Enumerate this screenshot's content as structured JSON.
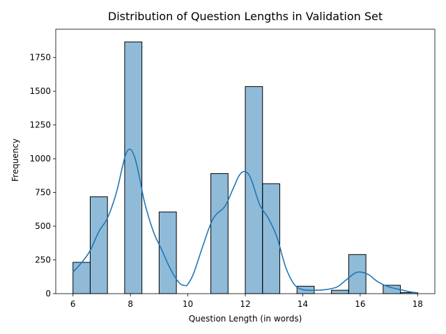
{
  "chart_data": {
    "type": "bar",
    "title": "Distribution of Question Lengths in Validation Set",
    "xlabel": "Question Length (in words)",
    "ylabel": "Frequency",
    "xlim": [
      5.4,
      18.6
    ],
    "ylim": [
      0,
      1960
    ],
    "xticks": [
      6,
      8,
      10,
      12,
      14,
      16,
      18
    ],
    "yticks": [
      0,
      250,
      500,
      750,
      1000,
      1250,
      1500,
      1750
    ],
    "grid": false,
    "legend": "none",
    "bar_color": "#1f77b4",
    "bin_edges": [
      6.0,
      6.6,
      7.2,
      7.8,
      8.4,
      9.0,
      9.6,
      10.2,
      10.8,
      11.4,
      12.0,
      12.6,
      13.2,
      13.8,
      14.4,
      15.0,
      15.6,
      16.2,
      16.8,
      17.4,
      18.0
    ],
    "values": [
      232,
      718,
      0,
      1866,
      0,
      605,
      0,
      0,
      890,
      0,
      1535,
      815,
      0,
      55,
      0,
      25,
      290,
      0,
      62,
      8
    ],
    "kde": {
      "x": [
        6.0,
        6.3,
        6.6,
        6.9,
        7.2,
        7.5,
        7.7,
        7.85,
        8.0,
        8.15,
        8.3,
        8.5,
        8.8,
        9.1,
        9.4,
        9.7,
        9.9,
        10.0,
        10.2,
        10.5,
        10.8,
        11.0,
        11.3,
        11.6,
        11.8,
        12.0,
        12.2,
        12.5,
        12.8,
        13.1,
        13.4,
        13.7,
        14.0,
        14.4,
        14.8,
        15.2,
        15.5,
        15.8,
        16.0,
        16.3,
        16.6,
        17.0,
        17.4,
        17.7,
        18.0
      ],
      "y": [
        160,
        230,
        320,
        460,
        560,
        740,
        920,
        1040,
        1070,
        1010,
        880,
        670,
        460,
        320,
        180,
        80,
        60,
        70,
        150,
        340,
        520,
        590,
        650,
        790,
        880,
        905,
        850,
        660,
        560,
        420,
        200,
        70,
        30,
        25,
        30,
        50,
        100,
        150,
        160,
        140,
        90,
        50,
        30,
        15,
        5
      ]
    }
  }
}
